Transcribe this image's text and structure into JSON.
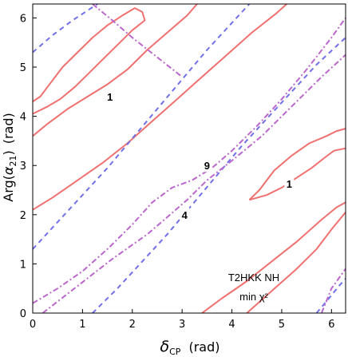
{
  "chart_data": {
    "type": "contour",
    "xlabel": "δCP  (rad)",
    "xlabel_parts": {
      "sym": "δ",
      "sub": "CP",
      "unit": "(rad)"
    },
    "ylabel": "Arg(α21)  (rad)",
    "ylabel_parts": {
      "pre": "Arg(",
      "sym": "α",
      "sub": "21",
      "post": ")",
      "unit": "(rad)"
    },
    "xlim": [
      0,
      6.283
    ],
    "ylim": [
      0,
      6.283
    ],
    "xticks": [
      0,
      1,
      2,
      3,
      4,
      5,
      6
    ],
    "yticks": [
      0,
      1,
      2,
      3,
      4,
      5,
      6
    ],
    "annotation_lines": [
      "T2HKK NH",
      "min χ²"
    ],
    "colors": {
      "level_1": "#f07070",
      "level_4": "#7070e8",
      "level_9": "#bb66cc"
    },
    "series": [
      {
        "level": "1",
        "style": "solid",
        "curves": [
          [
            [
              0.0,
              4.3
            ],
            [
              0.15,
              4.4
            ],
            [
              0.3,
              4.6
            ],
            [
              0.6,
              5.0
            ],
            [
              0.9,
              5.3
            ],
            [
              1.2,
              5.6
            ],
            [
              1.5,
              5.85
            ],
            [
              1.8,
              6.05
            ],
            [
              2.05,
              6.2
            ],
            [
              2.2,
              6.12
            ],
            [
              2.25,
              5.95
            ],
            [
              2.0,
              5.75
            ],
            [
              1.7,
              5.45
            ],
            [
              1.4,
              5.15
            ],
            [
              1.1,
              4.85
            ],
            [
              0.85,
              4.6
            ],
            [
              0.55,
              4.35
            ],
            [
              0.3,
              4.2
            ],
            [
              0.1,
              4.1
            ],
            [
              0.0,
              4.05
            ]
          ],
          [
            [
              0.0,
              3.6
            ],
            [
              0.3,
              3.85
            ],
            [
              0.7,
              4.15
            ],
            [
              1.1,
              4.4
            ],
            [
              1.5,
              4.65
            ],
            [
              1.9,
              4.95
            ],
            [
              2.3,
              5.35
            ],
            [
              2.7,
              5.7
            ],
            [
              3.1,
              6.05
            ],
            [
              3.3,
              6.283
            ]
          ],
          [
            [
              0.0,
              2.1
            ],
            [
              0.4,
              2.35
            ],
            [
              0.9,
              2.7
            ],
            [
              1.4,
              3.05
            ],
            [
              1.9,
              3.45
            ],
            [
              2.4,
              3.9
            ],
            [
              2.9,
              4.35
            ],
            [
              3.4,
              4.8
            ],
            [
              3.9,
              5.25
            ],
            [
              4.4,
              5.7
            ],
            [
              4.9,
              6.1
            ],
            [
              5.1,
              6.283
            ]
          ],
          [
            [
              4.35,
              2.3
            ],
            [
              4.55,
              2.5
            ],
            [
              4.85,
              2.9
            ],
            [
              5.2,
              3.2
            ],
            [
              5.55,
              3.45
            ],
            [
              5.9,
              3.6
            ],
            [
              6.1,
              3.7
            ],
            [
              6.283,
              3.75
            ]
          ],
          [
            [
              4.35,
              2.3
            ],
            [
              4.7,
              2.4
            ],
            [
              5.0,
              2.55
            ],
            [
              5.3,
              2.75
            ],
            [
              5.6,
              2.95
            ],
            [
              5.85,
              3.15
            ],
            [
              6.05,
              3.3
            ],
            [
              6.283,
              3.35
            ]
          ],
          [
            [
              3.4,
              0.0
            ],
            [
              3.8,
              0.3
            ],
            [
              4.3,
              0.65
            ],
            [
              4.8,
              1.05
            ],
            [
              5.3,
              1.45
            ],
            [
              5.8,
              1.9
            ],
            [
              6.1,
              2.15
            ],
            [
              6.283,
              2.25
            ]
          ],
          [
            [
              4.3,
              0.0
            ],
            [
              4.8,
              0.45
            ],
            [
              5.3,
              0.9
            ],
            [
              5.7,
              1.3
            ],
            [
              6.0,
              1.7
            ],
            [
              6.283,
              2.05
            ]
          ]
        ]
      },
      {
        "level": "4",
        "style": "dashed",
        "curves": [
          [
            [
              0.0,
              5.3
            ],
            [
              0.4,
              5.65
            ],
            [
              0.8,
              5.95
            ],
            [
              1.1,
              6.15
            ],
            [
              1.3,
              6.283
            ]
          ],
          [
            [
              0.0,
              1.3
            ],
            [
              0.5,
              1.85
            ],
            [
              1.0,
              2.4
            ],
            [
              1.5,
              2.95
            ],
            [
              2.0,
              3.55
            ],
            [
              2.5,
              4.15
            ],
            [
              3.0,
              4.75
            ],
            [
              3.5,
              5.35
            ],
            [
              4.0,
              5.9
            ],
            [
              4.35,
              6.283
            ]
          ],
          [
            [
              1.2,
              0.0
            ],
            [
              1.7,
              0.5
            ],
            [
              2.2,
              1.05
            ],
            [
              2.7,
              1.6
            ],
            [
              3.2,
              2.2
            ],
            [
              3.7,
              2.8
            ],
            [
              4.2,
              3.4
            ],
            [
              4.7,
              3.95
            ],
            [
              5.2,
              4.5
            ],
            [
              5.7,
              5.05
            ],
            [
              6.283,
              5.6
            ]
          ],
          [
            [
              5.7,
              0.0
            ],
            [
              5.95,
              0.3
            ],
            [
              6.15,
              0.55
            ],
            [
              6.283,
              0.7
            ]
          ]
        ]
      },
      {
        "level": "9",
        "style": "dashdot",
        "curves": [
          [
            [
              0.0,
              0.2
            ],
            [
              0.5,
              0.5
            ],
            [
              1.0,
              0.85
            ],
            [
              1.5,
              1.3
            ],
            [
              2.0,
              1.8
            ],
            [
              2.4,
              2.25
            ],
            [
              2.8,
              2.55
            ],
            [
              3.2,
              2.7
            ],
            [
              3.6,
              2.95
            ],
            [
              4.0,
              3.3
            ],
            [
              4.5,
              3.8
            ],
            [
              5.0,
              4.35
            ],
            [
              5.5,
              4.95
            ],
            [
              6.0,
              5.6
            ],
            [
              6.283,
              6.0
            ]
          ],
          [
            [
              0.2,
              0.0
            ],
            [
              0.9,
              0.55
            ],
            [
              1.6,
              1.1
            ],
            [
              2.3,
              1.6
            ],
            [
              2.7,
              1.95
            ],
            [
              3.1,
              2.3
            ],
            [
              3.5,
              2.7
            ],
            [
              4.0,
              3.1
            ],
            [
              4.6,
              3.6
            ],
            [
              5.2,
              4.2
            ],
            [
              5.8,
              4.8
            ],
            [
              6.283,
              5.25
            ]
          ],
          [
            [
              1.2,
              6.283
            ],
            [
              1.6,
              5.95
            ],
            [
              2.0,
              5.6
            ],
            [
              2.5,
              5.2
            ],
            [
              3.0,
              4.8
            ]
          ],
          [
            [
              5.8,
              0.0
            ],
            [
              6.0,
              0.5
            ],
            [
              6.283,
              0.9
            ]
          ]
        ]
      }
    ],
    "contour_labels": [
      {
        "text": "1",
        "x": 1.55,
        "y": 4.4
      },
      {
        "text": "1",
        "x": 5.15,
        "y": 2.63
      },
      {
        "text": "9",
        "x": 3.5,
        "y": 3.0
      },
      {
        "text": "4",
        "x": 3.05,
        "y": 2.0
      }
    ]
  }
}
